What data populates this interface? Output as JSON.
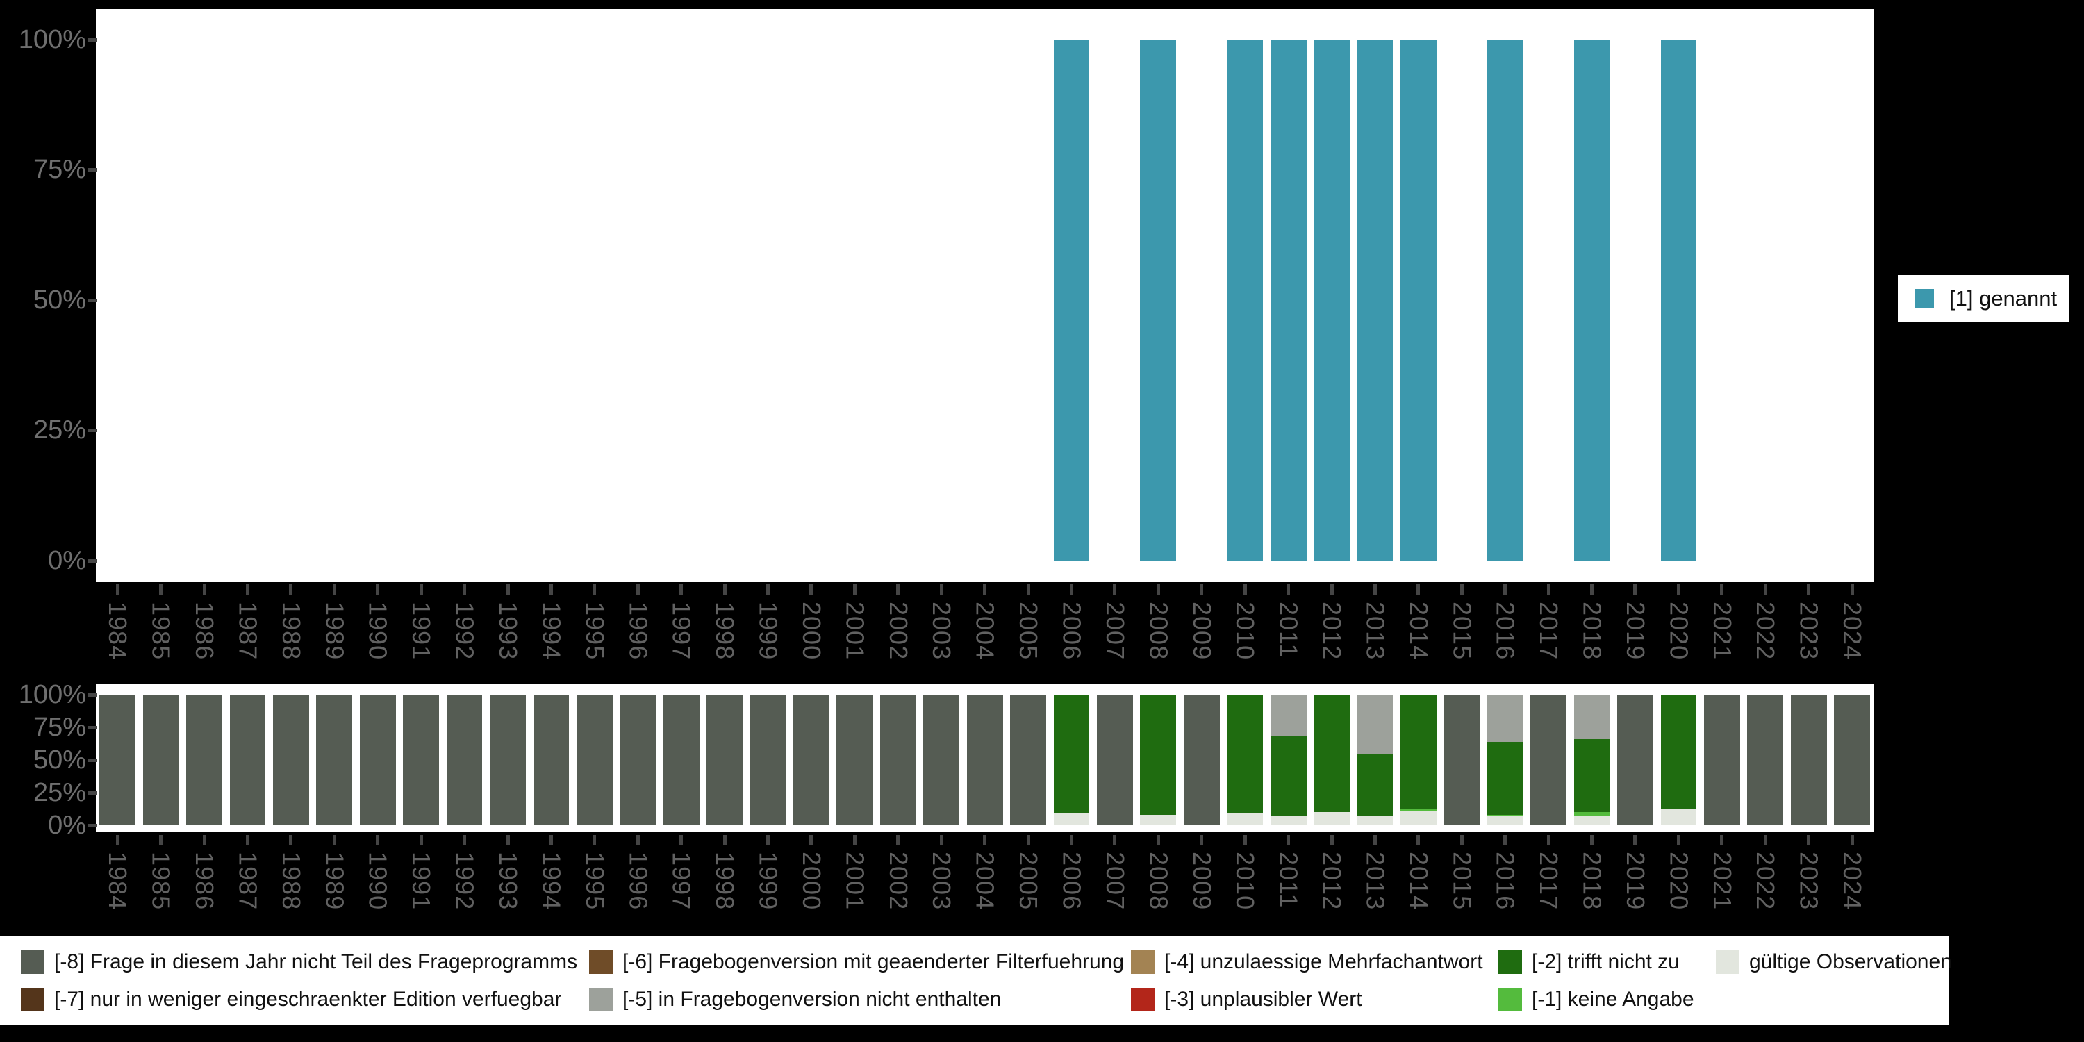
{
  "colors": {
    "background": "#000000",
    "panel": "#ffffff",
    "axis_text": "#6f6f6f",
    "tick": "#454545",
    "genannt": "#3C98AD",
    "m8": "#555C53",
    "m7": "#54351B",
    "m6": "#6F4C28",
    "m5": "#9DA19B",
    "m4": "#A38353",
    "m3": "#B3261A",
    "m2": "#1F6C10",
    "m1": "#54BB3D",
    "valid": "#E2E6DE"
  },
  "top_legend": {
    "label": "[1] genannt",
    "color_key": "genannt"
  },
  "missing_legend": {
    "items": [
      {
        "key": "m8",
        "label": "[-8] Frage in diesem Jahr nicht Teil des Frageprogramms",
        "col": 0,
        "row": 0
      },
      {
        "key": "m7",
        "label": "[-7] nur in weniger eingeschraenkter Edition verfuegbar",
        "col": 0,
        "row": 1
      },
      {
        "key": "m6",
        "label": "[-6] Fragebogenversion mit geaenderter Filterfuehrung",
        "col": 1,
        "row": 0
      },
      {
        "key": "m5",
        "label": "[-5] in Fragebogenversion nicht enthalten",
        "col": 1,
        "row": 1
      },
      {
        "key": "m4",
        "label": "[-4] unzulaessige Mehrfachantwort",
        "col": 2,
        "row": 0
      },
      {
        "key": "m3",
        "label": "[-3] unplausibler Wert",
        "col": 2,
        "row": 1
      },
      {
        "key": "m2",
        "label": "[-2] trifft nicht zu",
        "col": 3,
        "row": 0
      },
      {
        "key": "m1",
        "label": "[-1] keine Angabe",
        "col": 3,
        "row": 1
      },
      {
        "key": "valid",
        "label": "gültige Observationen",
        "col": 4,
        "row": 0
      }
    ]
  },
  "chart_data": [
    {
      "type": "bar",
      "title": "",
      "x": [
        1984,
        1985,
        1986,
        1987,
        1988,
        1989,
        1990,
        1991,
        1992,
        1993,
        1994,
        1995,
        1996,
        1997,
        1998,
        1999,
        2000,
        2001,
        2002,
        2003,
        2004,
        2005,
        2006,
        2007,
        2008,
        2009,
        2010,
        2011,
        2012,
        2013,
        2014,
        2015,
        2016,
        2017,
        2018,
        2019,
        2020,
        2021,
        2022,
        2023,
        2024
      ],
      "ylim": [
        0,
        100
      ],
      "grid": false,
      "legend_position": "right",
      "y_tick_labels": [
        "100%",
        "75%",
        "50%",
        "25%",
        "0%"
      ],
      "series": [
        {
          "name": "[1] genannt",
          "color_key": "genannt",
          "values": [
            0,
            0,
            0,
            0,
            0,
            0,
            0,
            0,
            0,
            0,
            0,
            0,
            0,
            0,
            0,
            0,
            0,
            0,
            0,
            0,
            0,
            0,
            100,
            0,
            100,
            0,
            100,
            100,
            100,
            100,
            100,
            0,
            100,
            0,
            100,
            0,
            100,
            0,
            0,
            0,
            0
          ]
        }
      ]
    },
    {
      "type": "stacked-bar-100",
      "title": "",
      "x": [
        1984,
        1985,
        1986,
        1987,
        1988,
        1989,
        1990,
        1991,
        1992,
        1993,
        1994,
        1995,
        1996,
        1997,
        1998,
        1999,
        2000,
        2001,
        2002,
        2003,
        2004,
        2005,
        2006,
        2007,
        2008,
        2009,
        2010,
        2011,
        2012,
        2013,
        2014,
        2015,
        2016,
        2017,
        2018,
        2019,
        2020,
        2021,
        2022,
        2023,
        2024
      ],
      "ylim": [
        0,
        100
      ],
      "grid": false,
      "legend_position": "bottom",
      "y_tick_labels": [
        "100%",
        "75%",
        "50%",
        "25%",
        "0%"
      ],
      "stack_order_bottom_to_top": [
        "valid",
        "m1",
        "m2",
        "m5",
        "m8"
      ],
      "series": [
        {
          "name": "gültige Observationen",
          "color_key": "valid",
          "values": [
            0,
            0,
            0,
            0,
            0,
            0,
            0,
            0,
            0,
            0,
            0,
            0,
            0,
            0,
            0,
            0,
            0,
            0,
            0,
            0,
            0,
            0,
            9,
            0,
            8,
            0,
            9,
            7,
            10,
            7,
            11,
            0,
            7,
            0,
            7,
            0,
            12,
            0,
            0,
            0,
            0
          ]
        },
        {
          "name": "[-1] keine Angabe",
          "color_key": "m1",
          "values": [
            0,
            0,
            0,
            0,
            0,
            0,
            0,
            0,
            0,
            0,
            0,
            0,
            0,
            0,
            0,
            0,
            0,
            0,
            0,
            0,
            0,
            0,
            0,
            0,
            0,
            0,
            0,
            0,
            0,
            0,
            1,
            0,
            1,
            0,
            3,
            0,
            0,
            0,
            0,
            0,
            0
          ]
        },
        {
          "name": "[-2] trifft nicht zu",
          "color_key": "m2",
          "values": [
            0,
            0,
            0,
            0,
            0,
            0,
            0,
            0,
            0,
            0,
            0,
            0,
            0,
            0,
            0,
            0,
            0,
            0,
            0,
            0,
            0,
            0,
            91,
            0,
            92,
            0,
            91,
            61,
            90,
            47,
            88,
            0,
            56,
            0,
            56,
            0,
            88,
            0,
            0,
            0,
            0
          ]
        },
        {
          "name": "[-5] in Fragebogenversion nicht enthalten",
          "color_key": "m5",
          "values": [
            0,
            0,
            0,
            0,
            0,
            0,
            0,
            0,
            0,
            0,
            0,
            0,
            0,
            0,
            0,
            0,
            0,
            0,
            0,
            0,
            0,
            0,
            0,
            0,
            0,
            0,
            0,
            32,
            0,
            46,
            0,
            0,
            36,
            0,
            34,
            0,
            0,
            0,
            0,
            0,
            0
          ]
        },
        {
          "name": "[-8] Frage in diesem Jahr nicht Teil des Frageprogramms",
          "color_key": "m8",
          "values": [
            100,
            100,
            100,
            100,
            100,
            100,
            100,
            100,
            100,
            100,
            100,
            100,
            100,
            100,
            100,
            100,
            100,
            100,
            100,
            100,
            100,
            100,
            0,
            100,
            0,
            100,
            0,
            0,
            0,
            0,
            0,
            100,
            0,
            100,
            0,
            100,
            0,
            100,
            100,
            100,
            100
          ]
        }
      ]
    }
  ]
}
